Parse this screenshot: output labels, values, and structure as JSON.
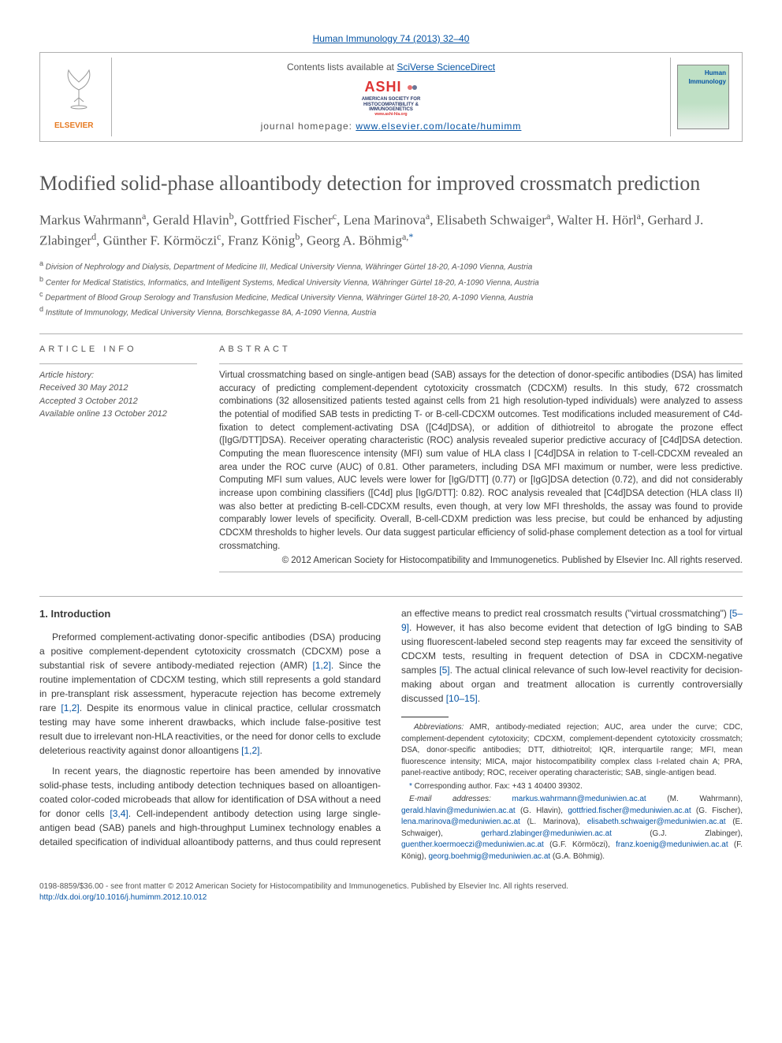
{
  "masthead": {
    "citation_link": "Human Immunology 74 (2013) 32–40"
  },
  "header": {
    "contents_text": "Contents lists available at ",
    "contents_link": "SciVerse ScienceDirect",
    "ashi_title": "ASHI",
    "ashi_sub1": "AMERICAN SOCIETY FOR",
    "ashi_sub2": "HISTOCOMPATIBILITY &",
    "ashi_sub3": "IMMUNOGENETICS",
    "ashi_url": "www.ashi-hla.org",
    "hp_text": "journal homepage: ",
    "hp_link": "www.elsevier.com/locate/humimm",
    "elsevier_word": "ELSEVIER",
    "cover_title": "Human Immunology"
  },
  "article": {
    "title": "Modified solid-phase alloantibody detection for improved crossmatch prediction",
    "authors_html": "Markus Wahrmann<sup class='aff'>a</sup>, Gerald Hlavin<sup class='aff'>b</sup>, Gottfried Fischer<sup class='aff'>c</sup>, Lena Marinova<sup class='aff'>a</sup>, Elisabeth Schwaiger<sup class='aff'>a</sup>, Walter H. Hörl<sup class='aff'>a</sup>, Gerhard J. Zlabinger<sup class='aff'>d</sup>, Günther F. Körmöczi<sup class='aff'>c</sup>, Franz König<sup class='aff'>b</sup>, Georg A. Böhmig<sup class='aff'>a,</sup><sup class='corr'>*</sup>"
  },
  "affiliations": {
    "a": "Division of Nephrology and Dialysis, Department of Medicine III, Medical University Vienna, Währinger Gürtel 18-20, A-1090 Vienna, Austria",
    "b": "Center for Medical Statistics, Informatics, and Intelligent Systems, Medical University Vienna, Währinger Gürtel 18-20, A-1090 Vienna, Austria",
    "c": "Department of Blood Group Serology and Transfusion Medicine, Medical University Vienna, Währinger Gürtel 18-20, A-1090 Vienna, Austria",
    "d": "Institute of Immunology, Medical University Vienna, Borschkegasse 8A, A-1090 Vienna, Austria"
  },
  "info": {
    "head": "ARTICLE INFO",
    "hist_head": "Article history:",
    "received": "Received 30 May 2012",
    "accepted": "Accepted 3 October 2012",
    "online": "Available online 13 October 2012"
  },
  "abstract": {
    "head": "ABSTRACT",
    "text": "Virtual crossmatching based on single-antigen bead (SAB) assays for the detection of donor-specific antibodies (DSA) has limited accuracy of predicting complement-dependent cytotoxicity crossmatch (CDCXM) results. In this study, 672 crossmatch combinations (32 allosensitized patients tested against cells from 21 high resolution-typed individuals) were analyzed to assess the potential of modified SAB tests in predicting T- or B-cell-CDCXM outcomes. Test modifications included measurement of C4d-fixation to detect complement-activating DSA ([C4d]DSA), or addition of dithiotreitol to abrogate the prozone effect ([IgG/DTT]DSA). Receiver operating characteristic (ROC) analysis revealed superior predictive accuracy of [C4d]DSA detection. Computing the mean fluorescence intensity (MFI) sum value of HLA class I [C4d]DSA in relation to T-cell-CDCXM revealed an area under the ROC curve (AUC) of 0.81. Other parameters, including DSA MFI maximum or number, were less predictive. Computing MFI sum values, AUC levels were lower for [IgG/DTT] (0.77) or [IgG]DSA detection (0.72), and did not considerably increase upon combining classifiers ([C4d] plus [IgG/DTT]: 0.82). ROC analysis revealed that [C4d]DSA detection (HLA class II) was also better at predicting B-cell-CDCXM results, even though, at very low MFI thresholds, the assay was found to provide comparably lower levels of specificity. Overall, B-cell-CDXM prediction was less precise, but could be enhanced by adjusting CDCXM thresholds to higher levels. Our data suggest particular efficiency of solid-phase complement detection as a tool for virtual crossmatching.",
    "copyright": "© 2012 American Society for Histocompatibility and Immunogenetics. Published by Elsevier Inc. All rights reserved."
  },
  "intro": {
    "head": "1. Introduction",
    "p1_pre": "Preformed complement-activating donor-specific antibodies (DSA) producing a positive complement-dependent cytotoxicity crossmatch (CDCXM) pose a substantial risk of severe antibody-mediated rejection (AMR) ",
    "p1_ref1": "[1,2]",
    "p1_mid": ". Since the routine implementation of CDCXM testing, which still represents a gold standard in pre-transplant risk assessment, hyperacute rejection has become extremely rare ",
    "p1_ref2": "[1,2]",
    "p1_post": ". Despite its enormous value in clinical practice, cellular crossmatch testing may have some inherent drawbacks, which include false-positive test result due to irrelevant non-HLA reactivities, or the need for donor cells to exclude deleterious reactivity against donor alloantigens ",
    "p1_ref3": "[1,2]",
    "p1_end": ".",
    "p2_pre": "In recent years, the diagnostic repertoire has been amended by innovative solid-phase tests, including antibody detection techniques based on alloantigen-coated color-coded microbeads that allow for identification of DSA without a need for donor cells ",
    "p2_ref1": "[3,4]",
    "p2_mid1": ". Cell-independent antibody detection using large single-antigen bead (SAB) panels and high-throughput Luminex technology enables a detailed specification of individual alloantibody patterns, and thus could represent an effective means to predict real crossmatch results (\"virtual crossmatching\") ",
    "p2_ref2": "[5–9]",
    "p2_mid2": ". However, it has also become evident that detection of IgG binding to SAB using fluorescent-labeled second step reagents may far exceed the sensitivity of CDCXM tests, resulting in frequent detection of DSA in CDCXM-negative samples ",
    "p2_ref3": "[5]",
    "p2_mid3": ". The actual clinical relevance of such low-level reactivity for decision-making about organ and treatment allocation is currently controversially discussed ",
    "p2_ref4": "[10–15]",
    "p2_end": "."
  },
  "footnotes": {
    "abbrev_label": "Abbreviations:",
    "abbrev_text": " AMR, antibody-mediated rejection; AUC, area under the curve; CDC, complement-dependent cytotoxicity; CDCXM, complement-dependent cytotoxicity crossmatch; DSA, donor-specific antibodies; DTT, dithiotreitol; IQR, interquartile range; MFI, mean fluorescence intensity; MICA, major histocompatibility complex class I-related chain A; PRA, panel-reactive antibody; ROC, receiver operating characteristic; SAB, single-antigen bead.",
    "corr": " Corresponding author. Fax: +43 1 40400 39302.",
    "email_label": "E-mail addresses:",
    "emails": [
      {
        "addr": "markus.wahrmann@meduniwien.ac.at",
        "who": " (M. Wahrmann), "
      },
      {
        "addr": "gerald.hlavin@meduniwien.ac.at",
        "who": " (G. Hlavin), "
      },
      {
        "addr": "gottfried.fischer@meduniwien.ac.at",
        "who": " (G. Fischer), "
      },
      {
        "addr": "lena.marinova@meduniwien.ac.at",
        "who": " (L. Marinova), "
      },
      {
        "addr": "elisabeth.schwaiger@meduniwien.ac.at",
        "who": " (E. Schwaiger), "
      },
      {
        "addr": "gerhard.zlabinger@meduniwien.ac.at",
        "who": " (G.J. Zlabinger), "
      },
      {
        "addr": "guenther.koermoeczi@meduniwien.ac.at",
        "who": " (G.F. Körmöczi), "
      },
      {
        "addr": "franz.koenig@meduniwien.ac.at",
        "who": " (F. König), "
      },
      {
        "addr": "georg.boehmig@meduniwien.ac.at",
        "who": " (G.A. Böhmig)."
      }
    ]
  },
  "footer": {
    "line1": "0198-8859/$36.00 - see front matter © 2012 American Society for Histocompatibility and Immunogenetics. Published by Elsevier Inc. All rights reserved.",
    "doi": "http://dx.doi.org/10.1016/j.humimm.2012.10.012"
  },
  "colors": {
    "link": "#0654a4",
    "text": "#3b3b3b",
    "rule": "#b0b0b0",
    "ashi_red": "#d33333",
    "elsevier_orange": "#e67a22"
  }
}
